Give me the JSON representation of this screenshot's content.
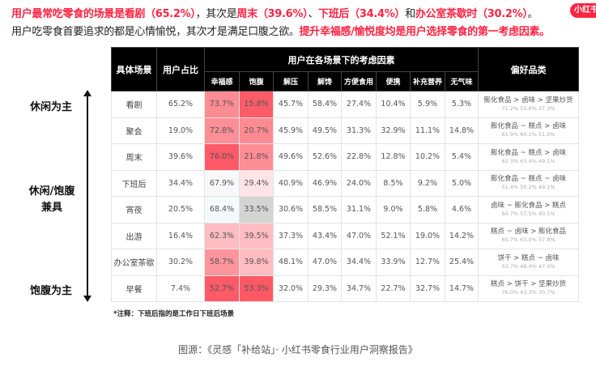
{
  "headline": {
    "parts": [
      {
        "text": "用户最常吃零食的场景是看剧（65.2%）",
        "style": "r"
      },
      {
        "text": "，其次是",
        "style": "b"
      },
      {
        "text": "周末（39.6%）",
        "style": "r"
      },
      {
        "text": "、",
        "style": "b"
      },
      {
        "text": "下班后（34.4%）",
        "style": "r"
      },
      {
        "text": "和",
        "style": "b"
      },
      {
        "text": "办公室茶歇时（30.2%）",
        "style": "r"
      },
      {
        "text": "。",
        "style": "b"
      }
    ]
  },
  "subline": {
    "parts": [
      {
        "text": "用户吃零食首要追求的都是心情愉悦，其次才是满足口腹之欲。",
        "style": "b"
      },
      {
        "text": "提升幸福感/愉悦度均是用户选择零食的第一考虑因素。",
        "style": "r"
      }
    ]
  },
  "logo": {
    "text": "小红书"
  },
  "side_labels": {
    "top": "休闲为主",
    "middle_1": "休闲/饱腹",
    "middle_2": "兼具",
    "bottom": "饱腹为主"
  },
  "colors": {
    "accent": "#ff2442",
    "header_bg": "#000000"
  },
  "table": {
    "headers": {
      "scene": "具体场景",
      "share": "用户占比",
      "factors_group": "用户在各场景下的考虑因素",
      "preference": "偏好品类",
      "factors": [
        "幸福感",
        "饱腹",
        "解压",
        "解馋",
        "方便食用",
        "便携",
        "补充营养",
        "无气味"
      ]
    },
    "rows": [
      {
        "scene": "看剧",
        "share": "65.2%",
        "values": [
          "73.7%",
          "15.8%",
          "45.7%",
          "58.4%",
          "27.4%",
          "10.4%",
          "5.9%",
          "5.3%"
        ],
        "colors": [
          "#ff8c93",
          "#ff5c69",
          "",
          "",
          "",
          "",
          "",
          ""
        ],
        "pref": "膨化食品 > 卤味 > 坚果炒货",
        "pref_pct": "71.2% 55.6% 37.3%"
      },
      {
        "scene": "聚会",
        "share": "19.0%",
        "values": [
          "72.8%",
          "20.7%",
          "45.9%",
          "49.5%",
          "31.3%",
          "32.9%",
          "11.1%",
          "14.8%"
        ],
        "colors": [
          "#ff8f96",
          "#ff8a92",
          "",
          "",
          "",
          "",
          "",
          ""
        ],
        "pref": "膨化食品 ~ 糕点 > 卤味",
        "pref_pct": "61.9% 60.1% 51.0%"
      },
      {
        "scene": "周末",
        "share": "39.6%",
        "values": [
          "76.0%",
          "21.8%",
          "49.6%",
          "52.6%",
          "22.8%",
          "12.8%",
          "10.2%",
          "5.4%"
        ],
        "colors": [
          "#ff5a67",
          "#ff8d95",
          "",
          "",
          "",
          "",
          "",
          ""
        ],
        "pref": "膨化食品 ~ 糕点 > 卤味",
        "pref_pct": "62.3% 63.4% 49.1%"
      },
      {
        "scene": "下班后",
        "share": "34.4%",
        "values": [
          "67.9%",
          "29.4%",
          "40.9%",
          "46.9%",
          "24.0%",
          "8.5%",
          "9.2%",
          "5.0%"
        ],
        "colors": [
          "#f8f8fb",
          "#ffe3e6",
          "",
          "",
          "",
          "",
          "",
          ""
        ],
        "pref": "膨化食品 ~ 糕点 ~ 卤味",
        "pref_pct": "51.4% 50.2% 49.1%"
      },
      {
        "scene": "宵夜",
        "share": "20.5%",
        "values": [
          "68.4%",
          "33.5%",
          "30.6%",
          "58.5%",
          "31.1%",
          "9.0%",
          "5.8%",
          "4.6%"
        ],
        "colors": [
          "#f4f9fb",
          "#d4d4d4",
          "",
          "",
          "",
          "",
          "",
          ""
        ],
        "pref": "卤味 ~ 膨化食品 > 糕点",
        "pref_pct": "60.7% 57.5% 40.5%"
      },
      {
        "scene": "出游",
        "share": "16.4%",
        "values": [
          "62.3%",
          "39.5%",
          "37.3%",
          "43.4%",
          "47.0%",
          "52.1%",
          "19.0%",
          "14.2%"
        ],
        "colors": [
          "#ffbcc1",
          "#ffbdc2",
          "",
          "",
          "",
          "",
          "",
          ""
        ],
        "pref": "糕点 ~ 卤味 > 膨化食品",
        "pref_pct": "65.7% 63.0% 57.8%"
      },
      {
        "scene": "办公室茶歇",
        "share": "30.2%",
        "values": [
          "58.7%",
          "39.8%",
          "48.1%",
          "47.0%",
          "34.4%",
          "33.9%",
          "12.7%",
          "25.4%"
        ],
        "colors": [
          "#ff959c",
          "#ffbcc1",
          "",
          "",
          "",
          "",
          "",
          ""
        ],
        "pref": "饼干 > 糕点 ~ 卤味",
        "pref_pct": "53.7% 48.4% 47.0%"
      },
      {
        "scene": "早餐",
        "share": "7.4%",
        "values": [
          "52.7%",
          "53.3%",
          "32.0%",
          "29.3%",
          "34.7%",
          "22.7%",
          "32.7%",
          "14.7%"
        ],
        "colors": [
          "#ff5a67",
          "#ff5865",
          "",
          "",
          "",
          "",
          "",
          ""
        ],
        "pref": "糕点 > 饼干 > 坚果炒货",
        "pref_pct": "76.0% 43.3% 30.7%"
      }
    ]
  },
  "note": "*注释：下班后指的是工作日下班后场景",
  "source": "图源：《灵感「补给站」· 小红书零食行业用户洞察报告》",
  "chart_data": {
    "type": "table",
    "title": "用户在各场景下的考虑因素",
    "columns": [
      "具体场景",
      "用户占比",
      "幸福感",
      "饱腹",
      "解压",
      "解馋",
      "方便食用",
      "便携",
      "补充营养",
      "无气味",
      "偏好品类"
    ],
    "rows": [
      [
        "看剧",
        65.2,
        73.7,
        15.8,
        45.7,
        58.4,
        27.4,
        10.4,
        5.9,
        5.3,
        "膨化食品 71.2% > 卤味 55.6% > 坚果炒货 37.3%"
      ],
      [
        "聚会",
        19.0,
        72.8,
        20.7,
        45.9,
        49.5,
        31.3,
        32.9,
        11.1,
        14.8,
        "膨化食品 61.9% ~ 糕点 60.1% > 卤味 51.0%"
      ],
      [
        "周末",
        39.6,
        76.0,
        21.8,
        49.6,
        52.6,
        22.8,
        12.8,
        10.2,
        5.4,
        "膨化食品 62.3% ~ 糕点 63.4% > 卤味 49.1%"
      ],
      [
        "下班后",
        34.4,
        67.9,
        29.4,
        40.9,
        46.9,
        24.0,
        8.5,
        9.2,
        5.0,
        "膨化食品 51.4% ~ 糕点 50.2% ~ 卤味 49.1%"
      ],
      [
        "宵夜",
        20.5,
        68.4,
        33.5,
        30.6,
        58.5,
        31.1,
        9.0,
        5.8,
        4.6,
        "卤味 60.7% ~ 膨化食品 57.5% > 糕点 40.5%"
      ],
      [
        "出游",
        16.4,
        62.3,
        39.5,
        37.3,
        43.4,
        47.0,
        52.1,
        19.0,
        14.2,
        "糕点 65.7% ~ 卤味 63.0% > 膨化食品 57.8%"
      ],
      [
        "办公室茶歇",
        30.2,
        58.7,
        39.8,
        48.1,
        47.0,
        34.4,
        33.9,
        12.7,
        25.4,
        "饼干 53.7% > 糕点 48.4% ~ 卤味 47.0%"
      ],
      [
        "早餐",
        7.4,
        52.7,
        53.3,
        32.0,
        29.3,
        34.7,
        22.7,
        32.7,
        14.7,
        "糕点 76.0% > 饼干 43.3% > 坚果炒货 30.7%"
      ]
    ],
    "units": "%",
    "annotations": [
      "休闲为主",
      "休闲/饱腹兼具",
      "饱腹为主"
    ]
  }
}
